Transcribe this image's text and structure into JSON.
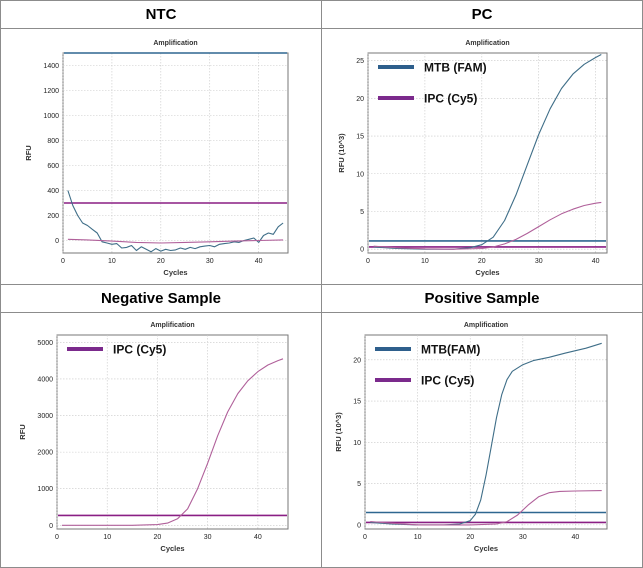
{
  "panels": [
    {
      "heading": "NTC",
      "chart_title": "Amplification",
      "xlabel": "Cycles",
      "ylabel": "RFU"
    },
    {
      "heading": "PC",
      "chart_title": "Amplification",
      "xlabel": "Cycles",
      "ylabel": "RFU (10^3)"
    },
    {
      "heading": "Negative Sample",
      "chart_title": "Amplification",
      "xlabel": "Cycles",
      "ylabel": "RFU"
    },
    {
      "heading": "Positive Sample",
      "chart_title": "Amplification",
      "xlabel": "Cycles",
      "ylabel": "RFU (10^3)"
    }
  ],
  "colors": {
    "fam": "#3f6e88",
    "cy5": "#b0609a",
    "fam_thresh": "#2e6790",
    "cy5_thresh": "#8a1f84",
    "legend_fam": "#2e5f8c",
    "legend_cy5": "#7b2a8c"
  },
  "chart_data": [
    {
      "type": "line",
      "title": "Amplification",
      "xlabel": "Cycles",
      "ylabel": "RFU",
      "xlim": [
        0,
        46
      ],
      "ylim": [
        -100,
        1500
      ],
      "xticks": [
        0,
        10,
        20,
        30,
        40
      ],
      "yticks": [
        0,
        200,
        400,
        600,
        800,
        1000,
        1200,
        1400
      ],
      "grid": true,
      "thresholds": [
        {
          "color": "fam_thresh",
          "y": 1500
        },
        {
          "color": "cy5_thresh",
          "y": 300
        }
      ],
      "series": [
        {
          "color": "fam",
          "x": [
            1,
            2,
            3,
            4,
            5,
            6,
            7,
            8,
            9,
            10,
            11,
            12,
            13,
            14,
            15,
            16,
            17,
            18,
            19,
            20,
            21,
            22,
            23,
            24,
            25,
            26,
            27,
            28,
            29,
            30,
            31,
            32,
            33,
            34,
            35,
            36,
            37,
            38,
            39,
            40,
            41,
            42,
            43,
            44,
            45
          ],
          "y": [
            400,
            280,
            200,
            140,
            120,
            90,
            60,
            -10,
            -20,
            -30,
            -25,
            -60,
            -55,
            -40,
            -80,
            -50,
            -70,
            -90,
            -65,
            -85,
            -70,
            -80,
            -75,
            -60,
            -70,
            -55,
            -65,
            -50,
            -45,
            -40,
            -50,
            -30,
            -25,
            -20,
            -10,
            -15,
            0,
            10,
            20,
            -15,
            40,
            60,
            50,
            110,
            140
          ]
        },
        {
          "color": "cy5",
          "x": [
            1,
            5,
            10,
            15,
            20,
            25,
            30,
            35,
            40,
            45
          ],
          "y": [
            10,
            5,
            -5,
            -15,
            -20,
            -15,
            -10,
            -5,
            0,
            5
          ]
        }
      ],
      "legend": []
    },
    {
      "type": "line",
      "title": "Amplification",
      "xlabel": "Cycles",
      "ylabel": "RFU (10^3)",
      "xlim": [
        0,
        42
      ],
      "ylim": [
        -0.5,
        26
      ],
      "xticks": [
        0,
        10,
        20,
        30,
        40
      ],
      "yticks": [
        0,
        5,
        10,
        15,
        20,
        25
      ],
      "grid": true,
      "thresholds": [
        {
          "color": "fam_thresh",
          "y": 1.1
        },
        {
          "color": "cy5_thresh",
          "y": 0.3
        }
      ],
      "series": [
        {
          "color": "fam",
          "x": [
            1,
            5,
            10,
            15,
            18,
            20,
            22,
            24,
            26,
            28,
            30,
            32,
            34,
            36,
            38,
            40,
            41
          ],
          "y": [
            0.3,
            0.1,
            0,
            0,
            0.2,
            0.6,
            1.6,
            3.8,
            7.2,
            11.2,
            15.2,
            18.6,
            21.3,
            23.2,
            24.5,
            25.4,
            25.8
          ]
        },
        {
          "color": "cy5",
          "x": [
            1,
            5,
            10,
            15,
            20,
            22,
            24,
            26,
            28,
            30,
            32,
            34,
            36,
            38,
            40,
            41
          ],
          "y": [
            0.4,
            0.2,
            0.05,
            0,
            0.1,
            0.3,
            0.7,
            1.3,
            2.1,
            3.0,
            3.9,
            4.7,
            5.3,
            5.8,
            6.1,
            6.2
          ]
        }
      ],
      "legend": [
        {
          "label": "MTB (FAM)",
          "color": "legend_fam"
        },
        {
          "label": "IPC (Cy5)",
          "color": "legend_cy5"
        }
      ]
    },
    {
      "type": "line",
      "title": "Amplification",
      "xlabel": "Cycles",
      "ylabel": "RFU",
      "xlim": [
        0,
        46
      ],
      "ylim": [
        -100,
        5200
      ],
      "xticks": [
        0,
        10,
        20,
        30,
        40
      ],
      "yticks": [
        0,
        1000,
        2000,
        3000,
        4000,
        5000
      ],
      "grid": true,
      "thresholds": [
        {
          "color": "cy5_thresh",
          "y": 270
        }
      ],
      "series": [
        {
          "color": "cy5",
          "x": [
            1,
            5,
            10,
            15,
            20,
            22,
            24,
            26,
            28,
            30,
            32,
            34,
            36,
            38,
            40,
            42,
            44,
            45
          ],
          "y": [
            0,
            0,
            0,
            0,
            20,
            60,
            180,
            450,
            1000,
            1700,
            2450,
            3100,
            3600,
            3950,
            4200,
            4380,
            4500,
            4550
          ]
        }
      ],
      "legend": [
        {
          "label": "IPC (Cy5)",
          "color": "legend_cy5"
        }
      ]
    },
    {
      "type": "line",
      "title": "Amplification",
      "xlabel": "Cycles",
      "ylabel": "RFU (10^3)",
      "xlim": [
        0,
        46
      ],
      "ylim": [
        -0.5,
        23
      ],
      "xticks": [
        0,
        10,
        20,
        30,
        40
      ],
      "yticks": [
        0,
        5,
        10,
        15,
        20
      ],
      "grid": true,
      "thresholds": [
        {
          "color": "fam_thresh",
          "y": 1.5
        },
        {
          "color": "cy5_thresh",
          "y": 0.3
        }
      ],
      "series": [
        {
          "color": "fam",
          "x": [
            1,
            5,
            10,
            15,
            18,
            20,
            21,
            22,
            23,
            24,
            25,
            26,
            27,
            28,
            30,
            32,
            35,
            38,
            40,
            42,
            45
          ],
          "y": [
            0.3,
            0.1,
            0,
            0,
            0.1,
            0.5,
            1.3,
            3.0,
            6.0,
            9.5,
            13.0,
            15.8,
            17.6,
            18.6,
            19.4,
            19.9,
            20.3,
            20.8,
            21.1,
            21.4,
            22.0
          ]
        },
        {
          "color": "cy5",
          "x": [
            1,
            5,
            10,
            15,
            20,
            25,
            27,
            29,
            31,
            33,
            35,
            37,
            40,
            45
          ],
          "y": [
            0.4,
            0.2,
            0,
            0,
            0,
            0.1,
            0.4,
            1.2,
            2.4,
            3.4,
            3.9,
            4.05,
            4.1,
            4.15
          ]
        }
      ],
      "legend": [
        {
          "label": "MTB(FAM)",
          "color": "legend_fam"
        },
        {
          "label": "IPC (Cy5)",
          "color": "legend_cy5"
        }
      ]
    }
  ]
}
